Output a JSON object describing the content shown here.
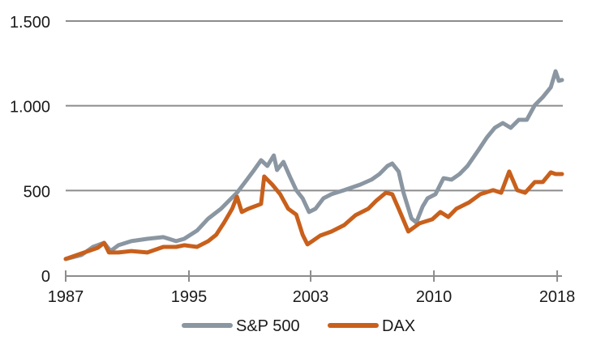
{
  "chart_data": {
    "type": "line",
    "title": "",
    "xlabel": "",
    "ylabel": "",
    "ylim": [
      0,
      1500
    ],
    "xlim": [
      1987,
      2018
    ],
    "y_ticks": [
      {
        "value": 0,
        "label": "0"
      },
      {
        "value": 500,
        "label": "500"
      },
      {
        "value": 1000,
        "label": "1.000"
      },
      {
        "value": 1500,
        "label": "1.500"
      }
    ],
    "x_ticks": [
      {
        "value": 1987.0,
        "label": "1987"
      },
      {
        "value": 1994.7,
        "label": "1995"
      },
      {
        "value": 2002.3,
        "label": "2003"
      },
      {
        "value": 2010.0,
        "label": "2010"
      },
      {
        "value": 2017.7,
        "label": "2018"
      }
    ],
    "grid": "horizontal",
    "legend_position": "bottom",
    "series": [
      {
        "name": "S&P 500",
        "color": "#8a96a1",
        "points": [
          [
            1987.0,
            96
          ],
          [
            1988.0,
            120
          ],
          [
            1988.7,
            167
          ],
          [
            1989.4,
            191
          ],
          [
            1989.8,
            143
          ],
          [
            1990.3,
            177
          ],
          [
            1991.1,
            201
          ],
          [
            1992.1,
            215
          ],
          [
            1993.1,
            225
          ],
          [
            1993.9,
            201
          ],
          [
            1994.4,
            215
          ],
          [
            1995.2,
            263
          ],
          [
            1995.9,
            334
          ],
          [
            1996.7,
            392
          ],
          [
            1997.2,
            440
          ],
          [
            1997.7,
            487
          ],
          [
            1998.2,
            549
          ],
          [
            1998.7,
            612
          ],
          [
            1999.2,
            679
          ],
          [
            1999.6,
            645
          ],
          [
            2000.0,
            707
          ],
          [
            2000.2,
            621
          ],
          [
            2000.6,
            669
          ],
          [
            2001.0,
            583
          ],
          [
            2001.4,
            502
          ],
          [
            2001.8,
            454
          ],
          [
            2002.2,
            373
          ],
          [
            2002.6,
            392
          ],
          [
            2003.1,
            454
          ],
          [
            2003.6,
            478
          ],
          [
            2004.4,
            502
          ],
          [
            2005.4,
            535
          ],
          [
            2006.1,
            564
          ],
          [
            2006.6,
            597
          ],
          [
            2007.1,
            645
          ],
          [
            2007.4,
            659
          ],
          [
            2007.8,
            612
          ],
          [
            2008.1,
            487
          ],
          [
            2008.6,
            335
          ],
          [
            2008.9,
            311
          ],
          [
            2009.3,
            406
          ],
          [
            2009.6,
            454
          ],
          [
            2010.1,
            478
          ],
          [
            2010.6,
            573
          ],
          [
            2011.1,
            564
          ],
          [
            2011.6,
            597
          ],
          [
            2012.1,
            645
          ],
          [
            2012.8,
            741
          ],
          [
            2013.3,
            812
          ],
          [
            2013.8,
            870
          ],
          [
            2014.3,
            898
          ],
          [
            2014.8,
            870
          ],
          [
            2015.3,
            917
          ],
          [
            2015.8,
            917
          ],
          [
            2016.3,
            1003
          ],
          [
            2016.8,
            1051
          ],
          [
            2017.3,
            1109
          ],
          [
            2017.6,
            1204
          ],
          [
            2017.8,
            1147
          ],
          [
            2018.0,
            1152
          ]
        ]
      },
      {
        "name": "DAX",
        "color": "#c8601c",
        "points": [
          [
            1987.0,
            96
          ],
          [
            1988.0,
            129
          ],
          [
            1989.0,
            162
          ],
          [
            1989.4,
            191
          ],
          [
            1989.7,
            134
          ],
          [
            1990.3,
            134
          ],
          [
            1991.1,
            143
          ],
          [
            1992.1,
            134
          ],
          [
            1993.1,
            167
          ],
          [
            1993.9,
            167
          ],
          [
            1994.4,
            177
          ],
          [
            1995.2,
            167
          ],
          [
            1995.9,
            201
          ],
          [
            1996.4,
            239
          ],
          [
            1996.9,
            311
          ],
          [
            1997.4,
            392
          ],
          [
            1997.7,
            464
          ],
          [
            1998.0,
            373
          ],
          [
            1998.4,
            392
          ],
          [
            1999.2,
            421
          ],
          [
            1999.4,
            583
          ],
          [
            1999.9,
            535
          ],
          [
            2000.4,
            478
          ],
          [
            2000.9,
            392
          ],
          [
            2001.4,
            358
          ],
          [
            2001.8,
            239
          ],
          [
            2002.1,
            182
          ],
          [
            2002.4,
            201
          ],
          [
            2002.9,
            234
          ],
          [
            2003.6,
            258
          ],
          [
            2004.4,
            296
          ],
          [
            2005.1,
            354
          ],
          [
            2005.9,
            392
          ],
          [
            2006.4,
            440
          ],
          [
            2007.0,
            487
          ],
          [
            2007.4,
            478
          ],
          [
            2007.8,
            392
          ],
          [
            2008.4,
            258
          ],
          [
            2008.6,
            272
          ],
          [
            2009.1,
            306
          ],
          [
            2009.9,
            330
          ],
          [
            2010.4,
            373
          ],
          [
            2010.9,
            344
          ],
          [
            2011.4,
            392
          ],
          [
            2012.2,
            430
          ],
          [
            2012.9,
            478
          ],
          [
            2013.7,
            502
          ],
          [
            2014.2,
            487
          ],
          [
            2014.7,
            612
          ],
          [
            2015.2,
            502
          ],
          [
            2015.7,
            487
          ],
          [
            2016.3,
            550
          ],
          [
            2016.8,
            550
          ],
          [
            2017.3,
            607
          ],
          [
            2017.6,
            597
          ],
          [
            2018.0,
            597
          ]
        ]
      }
    ]
  }
}
